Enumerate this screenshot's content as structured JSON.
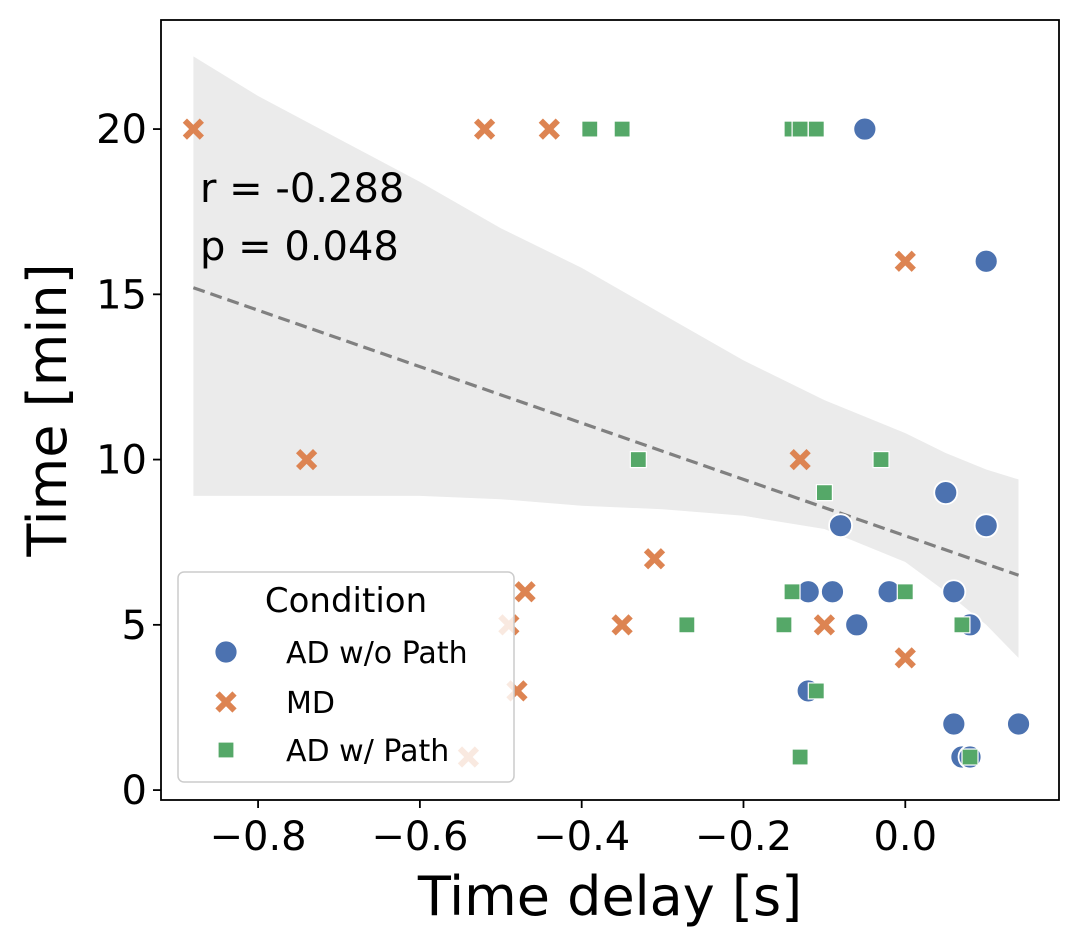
{
  "chart_data": {
    "type": "scatter",
    "xlabel": "Time delay [s]",
    "ylabel": "Time [min]",
    "xlim": [
      -0.92,
      0.19
    ],
    "ylim": [
      -0.3,
      23.3
    ],
    "x_ticks": [
      -0.8,
      -0.6,
      -0.4,
      -0.2,
      0.0
    ],
    "x_tick_labels": [
      "−0.8",
      "−0.6",
      "−0.4",
      "−0.2",
      "0.0"
    ],
    "y_ticks": [
      0,
      5,
      10,
      15,
      20
    ],
    "y_tick_labels": [
      "0",
      "5",
      "10",
      "15",
      "20"
    ],
    "annotations": {
      "r_text": "r  = -0.288",
      "p_text": "p =  0.048"
    },
    "regression": {
      "x_start": -0.88,
      "y_start": 15.2,
      "x_end": 0.14,
      "y_end": 6.5,
      "color": "#808080",
      "ci_band": {
        "x": [
          -0.88,
          -0.8,
          -0.7,
          -0.6,
          -0.5,
          -0.4,
          -0.3,
          -0.2,
          -0.1,
          0.0,
          0.05,
          0.1,
          0.14
        ],
        "upper": [
          22.2,
          21.0,
          19.7,
          18.4,
          17.0,
          15.8,
          14.4,
          13.0,
          11.8,
          10.8,
          10.2,
          9.7,
          9.4
        ],
        "lower": [
          8.9,
          8.9,
          8.9,
          8.9,
          8.8,
          8.6,
          8.5,
          8.3,
          7.9,
          6.9,
          6.0,
          5.0,
          4.0
        ]
      }
    },
    "legend": {
      "title": "Condition",
      "position": "lower-left"
    },
    "series": [
      {
        "name": "AD w/o Path",
        "marker": "circle",
        "color": "#4c72b0",
        "points": [
          [
            -0.05,
            20
          ],
          [
            0.1,
            16
          ],
          [
            0.05,
            9
          ],
          [
            -0.08,
            8
          ],
          [
            0.1,
            8
          ],
          [
            -0.12,
            6
          ],
          [
            -0.09,
            6
          ],
          [
            -0.02,
            6
          ],
          [
            0.06,
            6
          ],
          [
            -0.06,
            5
          ],
          [
            0.08,
            5
          ],
          [
            -0.12,
            3
          ],
          [
            0.06,
            2
          ],
          [
            0.14,
            2
          ],
          [
            0.07,
            1
          ],
          [
            0.08,
            1
          ]
        ]
      },
      {
        "name": "MD",
        "marker": "x",
        "color": "#dd8452",
        "points": [
          [
            -0.88,
            20
          ],
          [
            -0.52,
            20
          ],
          [
            -0.44,
            20
          ],
          [
            0.0,
            16
          ],
          [
            -0.74,
            10
          ],
          [
            -0.13,
            10
          ],
          [
            -0.31,
            7
          ],
          [
            -0.47,
            6
          ],
          [
            -0.49,
            5
          ],
          [
            -0.35,
            5
          ],
          [
            -0.1,
            5
          ],
          [
            0.0,
            4
          ],
          [
            -0.48,
            3
          ],
          [
            -0.54,
            1
          ]
        ]
      },
      {
        "name": "AD w/ Path",
        "marker": "square",
        "color": "#55a868",
        "points": [
          [
            -0.39,
            20
          ],
          [
            -0.35,
            20
          ],
          [
            -0.14,
            20
          ],
          [
            -0.13,
            20
          ],
          [
            -0.11,
            20
          ],
          [
            -0.33,
            10
          ],
          [
            -0.03,
            10
          ],
          [
            -0.1,
            9
          ],
          [
            -0.14,
            6
          ],
          [
            0.0,
            6
          ],
          [
            -0.27,
            5
          ],
          [
            -0.15,
            5
          ],
          [
            0.07,
            5
          ],
          [
            -0.11,
            3
          ],
          [
            -0.13,
            1
          ],
          [
            0.08,
            1
          ]
        ]
      }
    ]
  }
}
